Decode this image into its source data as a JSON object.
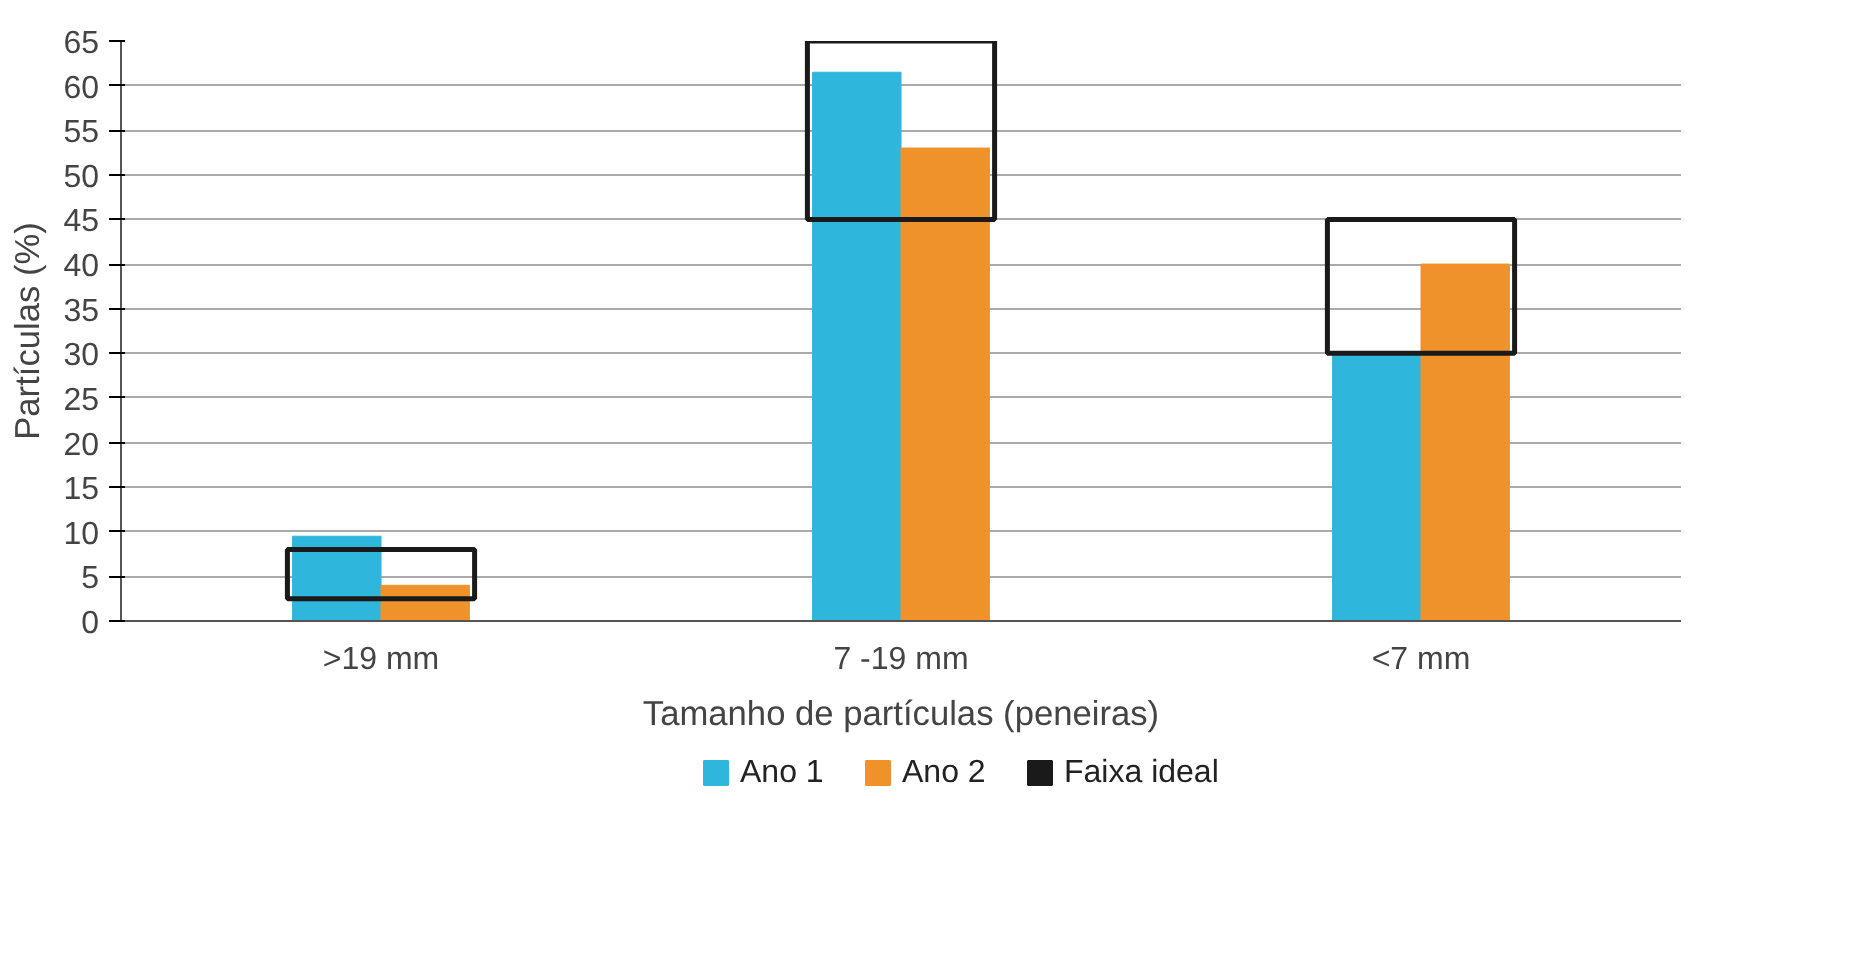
{
  "chart_data": {
    "type": "bar",
    "xlabel": "Tamanho de partículas (peneiras)",
    "ylabel": "Partículas (%)",
    "categories": [
      ">19 mm",
      "7 -19 mm",
      "<7 mm"
    ],
    "series": [
      {
        "name": "Ano 1",
        "color": "#2fb6dc",
        "values": [
          9.5,
          61.5,
          30
        ]
      },
      {
        "name": "Ano 2",
        "color": "#f0922a",
        "values": [
          4,
          53,
          40
        ]
      },
      {
        "name": "Faixa ideal",
        "color": "#1a1a1a",
        "base": [
          2.5,
          45,
          30
        ],
        "values": [
          5.5,
          20,
          15
        ]
      }
    ],
    "ylim": [
      0,
      65
    ],
    "yticks": [
      0,
      5,
      10,
      15,
      20,
      25,
      30,
      35,
      40,
      45,
      50,
      55,
      60,
      65
    ],
    "grid": "y",
    "legend": "bottom"
  }
}
